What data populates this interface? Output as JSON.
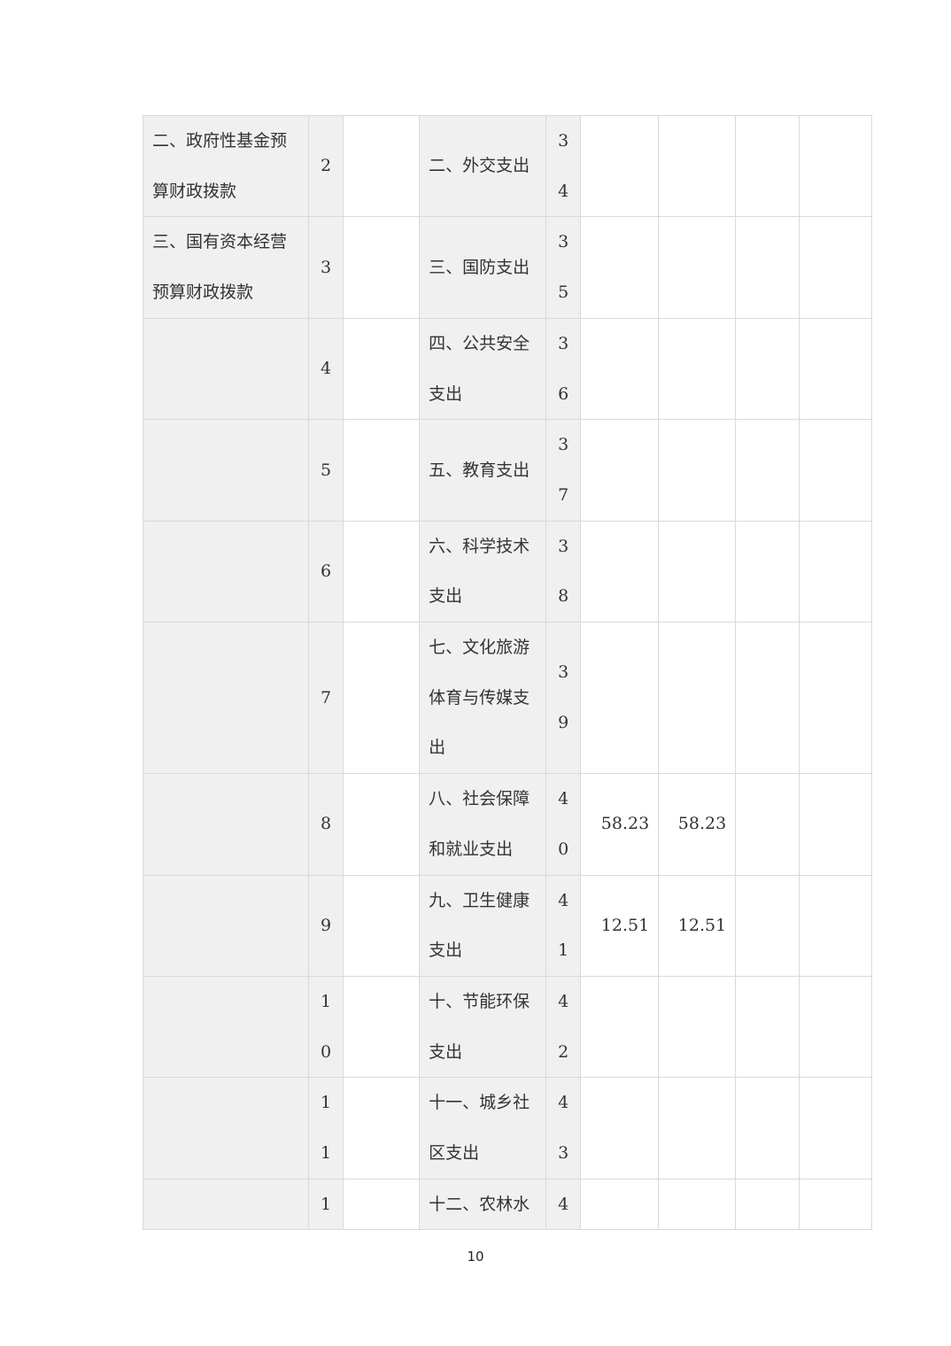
{
  "rows": [
    {
      "income_item": "二、政府性基金预算财政拨款",
      "income_no": "2",
      "income_amount": "",
      "expense_item": "二、外交支出",
      "expense_no": "34",
      "v1": "",
      "v2": "",
      "v3": "",
      "v4": ""
    },
    {
      "income_item": "三、国有资本经营预算财政拨款",
      "income_no": "3",
      "income_amount": "",
      "expense_item": "三、国防支出",
      "expense_no": "35",
      "v1": "",
      "v2": "",
      "v3": "",
      "v4": ""
    },
    {
      "income_item": "",
      "income_no": "4",
      "income_amount": "",
      "expense_item": "四、公共安全支出",
      "expense_no": "36",
      "v1": "",
      "v2": "",
      "v3": "",
      "v4": ""
    },
    {
      "income_item": "",
      "income_no": "5",
      "income_amount": "",
      "expense_item": "五、教育支出",
      "expense_no": "37",
      "v1": "",
      "v2": "",
      "v3": "",
      "v4": ""
    },
    {
      "income_item": "",
      "income_no": "6",
      "income_amount": "",
      "expense_item": "六、科学技术支出",
      "expense_no": "38",
      "v1": "",
      "v2": "",
      "v3": "",
      "v4": ""
    },
    {
      "income_item": "",
      "income_no": "7",
      "income_amount": "",
      "expense_item": "七、文化旅游体育与传媒支出",
      "expense_no": "39",
      "v1": "",
      "v2": "",
      "v3": "",
      "v4": ""
    },
    {
      "income_item": "",
      "income_no": "8",
      "income_amount": "",
      "expense_item": "八、社会保障和就业支出",
      "expense_no": "40",
      "v1": "58.23",
      "v2": "58.23",
      "v3": "",
      "v4": ""
    },
    {
      "income_item": "",
      "income_no": "9",
      "income_amount": "",
      "expense_item": "九、卫生健康支出",
      "expense_no": "41",
      "v1": "12.51",
      "v2": "12.51",
      "v3": "",
      "v4": ""
    },
    {
      "income_item": "",
      "income_no": "10",
      "income_amount": "",
      "expense_item": "十、节能环保支出",
      "expense_no": "42",
      "v1": "",
      "v2": "",
      "v3": "",
      "v4": ""
    },
    {
      "income_item": "",
      "income_no": "11",
      "income_amount": "",
      "expense_item": "十一、城乡社区支出",
      "expense_no": "43",
      "v1": "",
      "v2": "",
      "v3": "",
      "v4": ""
    },
    {
      "income_item": "",
      "income_no": "1",
      "income_amount": "",
      "expense_item": "十二、农林水",
      "expense_no": "4",
      "v1": "",
      "v2": "",
      "v3": "",
      "v4": ""
    }
  ],
  "page_number": "10"
}
